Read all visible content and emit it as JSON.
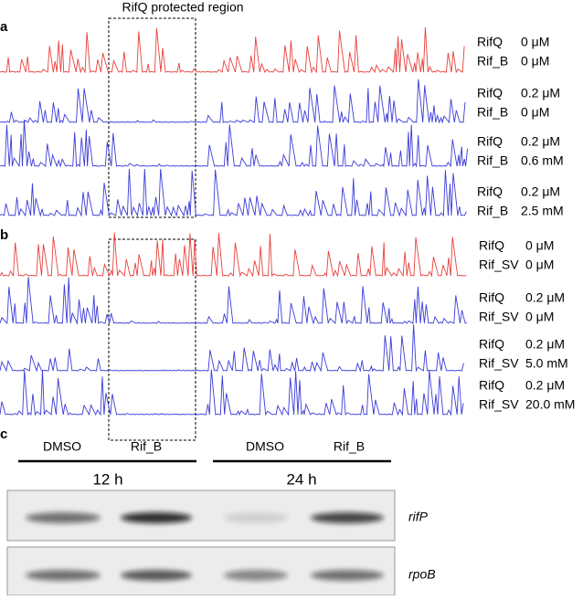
{
  "panel_a": {
    "label": "a",
    "region_label": "RifQ protected region",
    "rows": [
      {
        "line1": "RifQ",
        "conc1": "0 μM",
        "line2": "Rif_B",
        "conc2": "0 μM"
      },
      {
        "line1": "RifQ",
        "conc1": "0.2 μM",
        "line2": "Rif_B",
        "conc2": "0 μM"
      },
      {
        "line1": "RifQ",
        "conc1": "0.2 μM",
        "line2": "Rif_B",
        "conc2": "0.6 mM"
      },
      {
        "line1": "RifQ",
        "conc1": "0.2 μM",
        "line2": "Rif_B",
        "conc2": "2.5 mM"
      }
    ]
  },
  "panel_b": {
    "label": "b",
    "rows": [
      {
        "line1": "RifQ",
        "conc1": "0 μM",
        "line2": "Rif_SV",
        "conc2": "0 μM"
      },
      {
        "line1": "RifQ",
        "conc1": "0.2 μM",
        "line2": "Rif_SV",
        "conc2": "0 μM"
      },
      {
        "line1": "RifQ",
        "conc1": "0.2 μM",
        "line2": "Rif_SV",
        "conc2": "5.0 mM"
      },
      {
        "line1": "RifQ",
        "conc1": "0.2 μM",
        "line2": "Rif_SV",
        "conc2": "20.0 mM"
      }
    ]
  },
  "panel_c": {
    "label": "c",
    "lanes": [
      "DMSO",
      "Rif_B",
      "DMSO",
      "Rif_B"
    ],
    "groups": [
      "12 h",
      "24 h"
    ],
    "genes": [
      "rifP",
      "rpoB"
    ]
  }
}
